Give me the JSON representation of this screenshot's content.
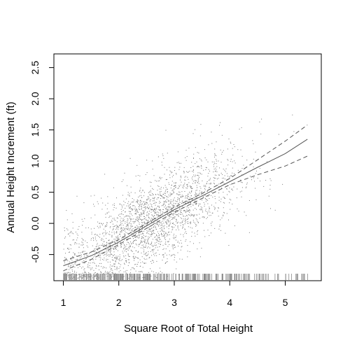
{
  "chart_data": {
    "type": "scatter",
    "title": "",
    "xlabel": "Square Root of Total Height",
    "ylabel": "Annual Height Increment (ft)",
    "xlim": [
      0.83,
      5.65
    ],
    "ylim": [
      -0.92,
      2.72
    ],
    "x_ticks": [
      {
        "value": 1,
        "label": "1"
      },
      {
        "value": 2,
        "label": "2"
      },
      {
        "value": 3,
        "label": "3"
      },
      {
        "value": 4,
        "label": "4"
      },
      {
        "value": 5,
        "label": "5"
      }
    ],
    "y_ticks": [
      {
        "value": -0.5,
        "label": "-0.5"
      },
      {
        "value": 0.0,
        "label": "0.0"
      },
      {
        "value": 0.5,
        "label": "0.5"
      },
      {
        "value": 1.0,
        "label": "1.0"
      },
      {
        "value": 1.5,
        "label": "1.5"
      },
      {
        "value": 2.0,
        "label": "2.0"
      },
      {
        "value": 2.5,
        "label": "2.5"
      }
    ],
    "grid": false,
    "fit_line": {
      "x": [
        1.0,
        1.5,
        2.0,
        2.5,
        3.0,
        3.5,
        4.0,
        4.5,
        5.0,
        5.4
      ],
      "y": [
        -0.68,
        -0.52,
        -0.3,
        -0.04,
        0.22,
        0.44,
        0.67,
        0.9,
        1.12,
        1.35
      ]
    },
    "confidence_band_upper": {
      "x": [
        1.0,
        1.5,
        2.0,
        2.5,
        3.0,
        3.5,
        4.0,
        4.5,
        5.0,
        5.4
      ],
      "y": [
        -0.6,
        -0.46,
        -0.26,
        0.0,
        0.26,
        0.48,
        0.72,
        1.02,
        1.32,
        1.58
      ]
    },
    "confidence_band_lower": {
      "x": [
        1.0,
        1.5,
        2.0,
        2.5,
        3.0,
        3.5,
        4.0,
        4.5,
        5.0,
        5.4
      ],
      "y": [
        -0.76,
        -0.58,
        -0.34,
        -0.08,
        0.18,
        0.4,
        0.62,
        0.78,
        0.92,
        1.08
      ]
    },
    "colors": {
      "points": "#7a7a7a",
      "fit": "#555555",
      "band": "#555555",
      "rug": "#8a8a8a"
    }
  }
}
